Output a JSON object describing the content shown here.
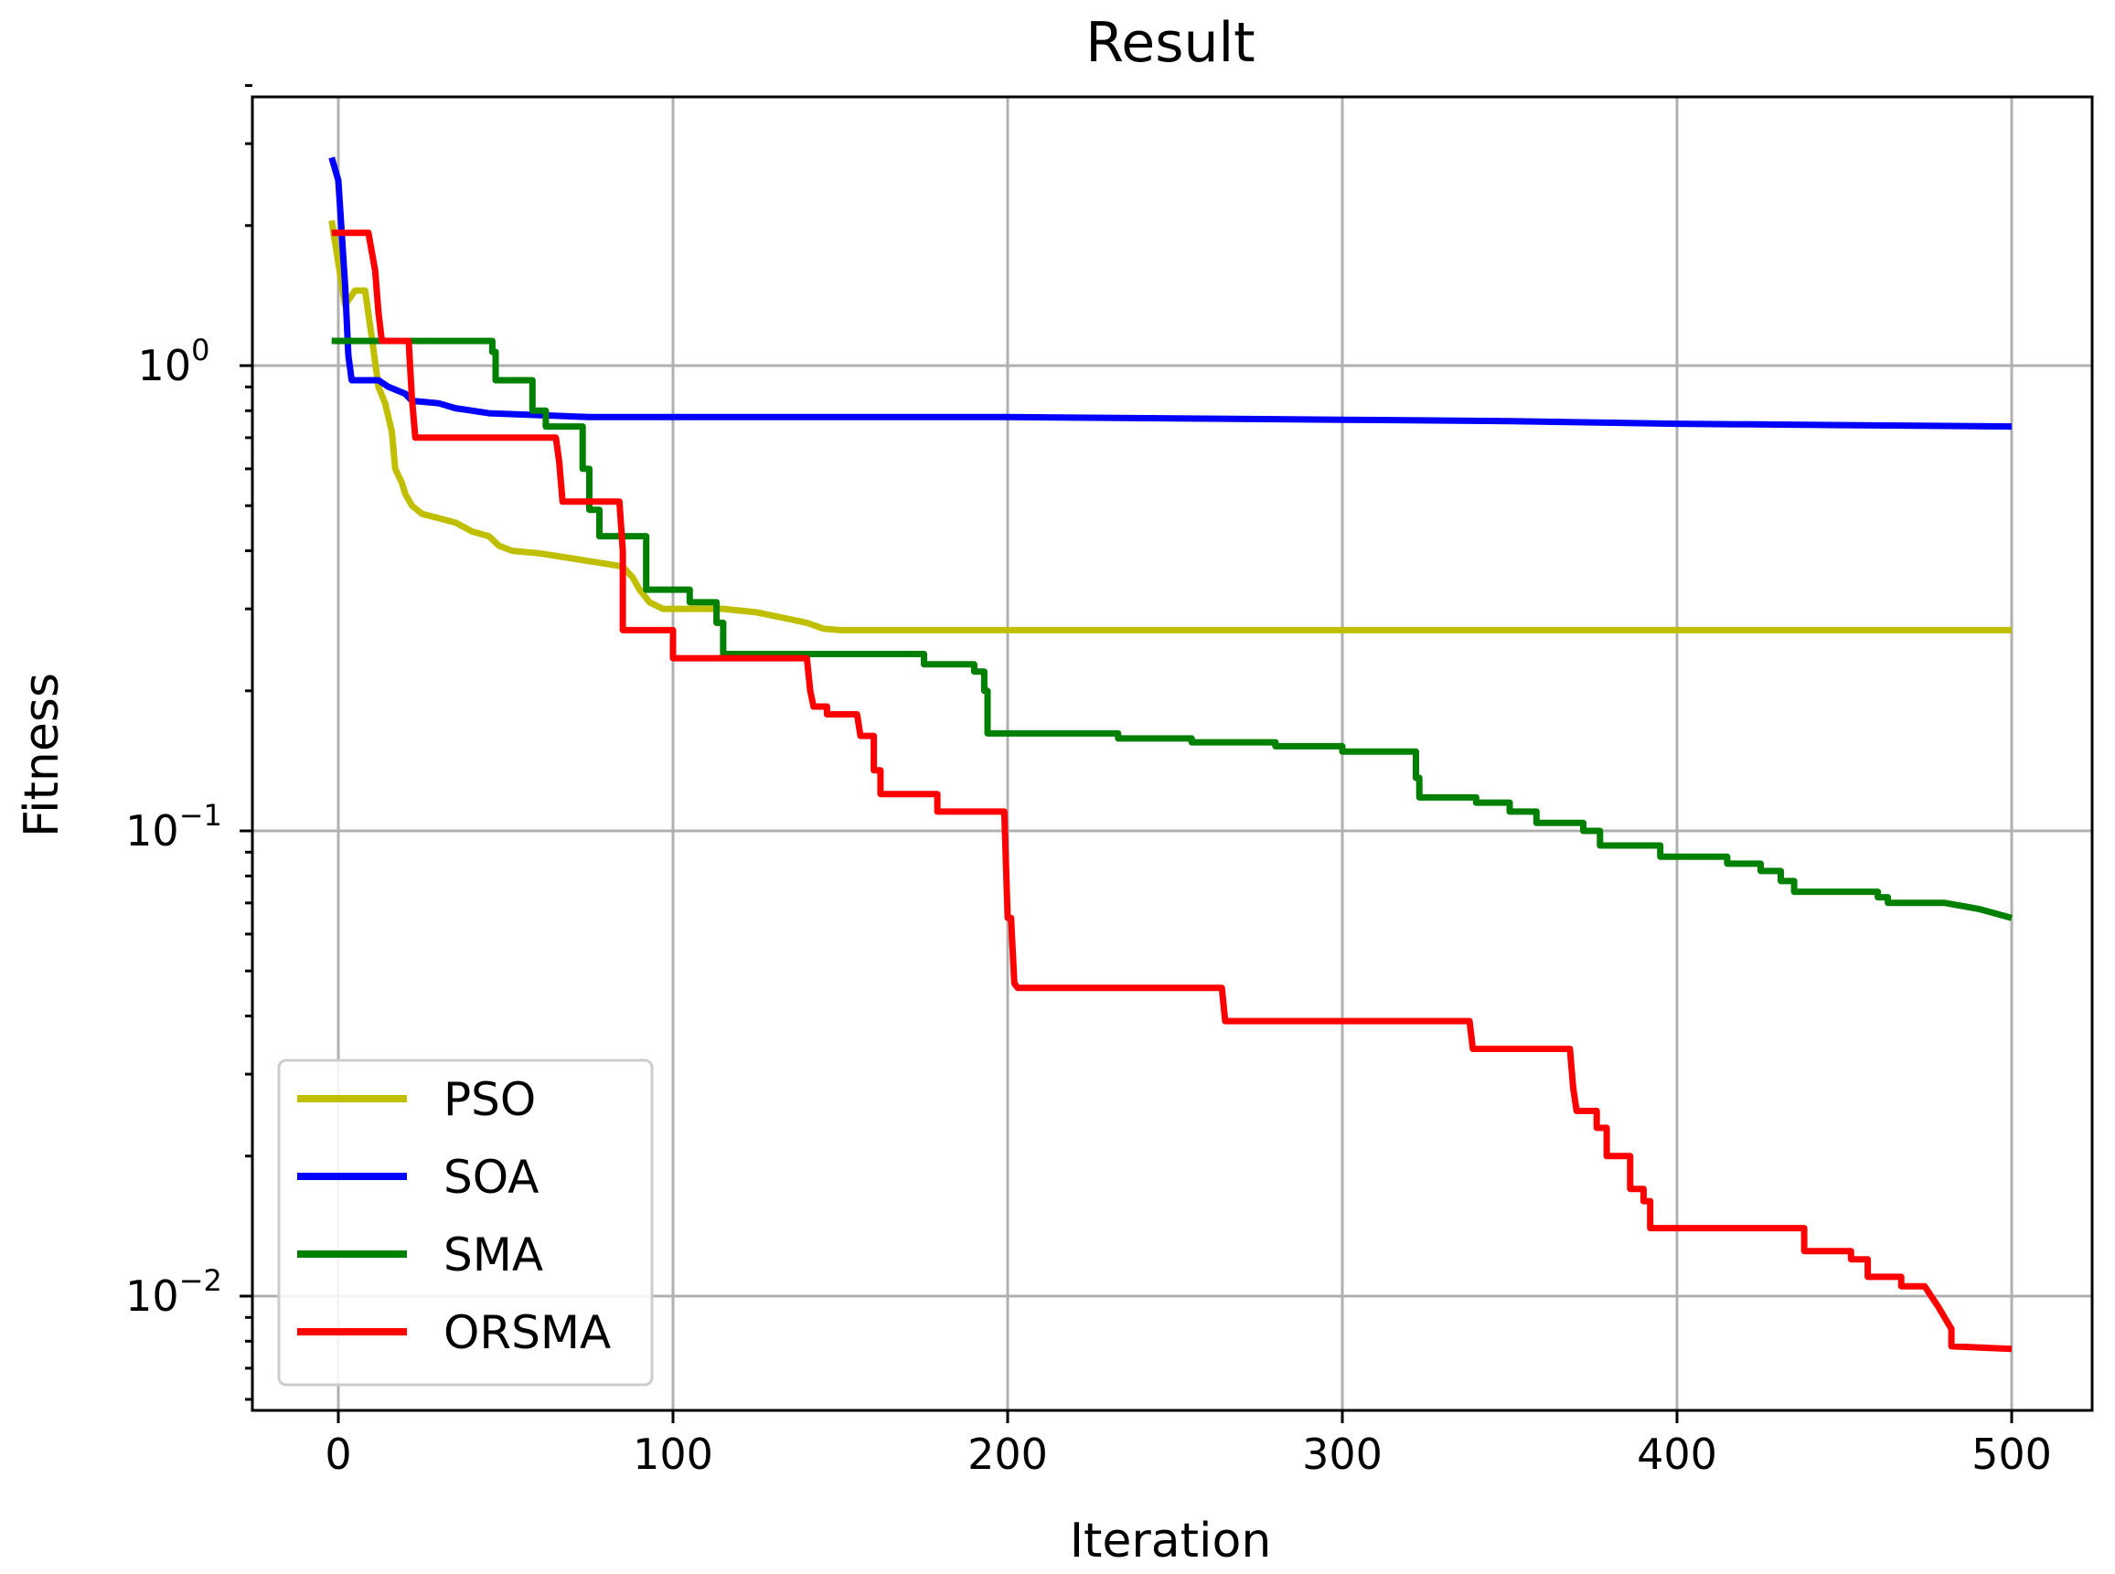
{
  "chart_data": {
    "type": "line",
    "title": "Result",
    "xlabel": "Iteration",
    "ylabel": "Fitness",
    "xlim": [
      -25,
      525
    ],
    "ylim": [
      0.0057,
      4.2
    ],
    "yscale": "log",
    "grid": true,
    "legend_position": "lower-left",
    "x_ticks": [
      0,
      100,
      200,
      300,
      400,
      500
    ],
    "y_ticks": [
      {
        "value": 1,
        "base": "10",
        "exp": "0"
      },
      {
        "value": 0.1,
        "base": "10",
        "exp": "−1"
      },
      {
        "value": 0.01,
        "base": "10",
        "exp": "−2"
      }
    ],
    "series": [
      {
        "name": "PSO",
        "color": "#bfbf00",
        "points": [
          [
            -2,
            2.05
          ],
          [
            2,
            1.35
          ],
          [
            5,
            1.45
          ],
          [
            8,
            1.45
          ],
          [
            10,
            1.15
          ],
          [
            12,
            0.9
          ],
          [
            14,
            0.83
          ],
          [
            16,
            0.72
          ],
          [
            17,
            0.6
          ],
          [
            19,
            0.56
          ],
          [
            20,
            0.53
          ],
          [
            22,
            0.5
          ],
          [
            25,
            0.48
          ],
          [
            30,
            0.47
          ],
          [
            35,
            0.46
          ],
          [
            40,
            0.44
          ],
          [
            45,
            0.43
          ],
          [
            48,
            0.41
          ],
          [
            52,
            0.4
          ],
          [
            60,
            0.395
          ],
          [
            70,
            0.385
          ],
          [
            80,
            0.375
          ],
          [
            85,
            0.37
          ],
          [
            88,
            0.35
          ],
          [
            90,
            0.33
          ],
          [
            93,
            0.31
          ],
          [
            97,
            0.3
          ],
          [
            105,
            0.3
          ],
          [
            115,
            0.3
          ],
          [
            125,
            0.295
          ],
          [
            135,
            0.285
          ],
          [
            140,
            0.28
          ],
          [
            145,
            0.272
          ],
          [
            150,
            0.27
          ],
          [
            200,
            0.27
          ],
          [
            300,
            0.27
          ],
          [
            400,
            0.27
          ],
          [
            500,
            0.27
          ]
        ]
      },
      {
        "name": "SOA",
        "color": "#0000ff",
        "points": [
          [
            -2,
            2.8
          ],
          [
            0,
            2.5
          ],
          [
            2,
            1.5
          ],
          [
            3,
            1.05
          ],
          [
            4,
            0.93
          ],
          [
            12,
            0.93
          ],
          [
            15,
            0.9
          ],
          [
            20,
            0.87
          ],
          [
            22,
            0.84
          ],
          [
            30,
            0.83
          ],
          [
            35,
            0.81
          ],
          [
            40,
            0.8
          ],
          [
            45,
            0.79
          ],
          [
            55,
            0.785
          ],
          [
            65,
            0.78
          ],
          [
            75,
            0.775
          ],
          [
            100,
            0.775
          ],
          [
            150,
            0.775
          ],
          [
            200,
            0.775
          ],
          [
            250,
            0.77
          ],
          [
            300,
            0.765
          ],
          [
            350,
            0.76
          ],
          [
            400,
            0.75
          ],
          [
            450,
            0.745
          ],
          [
            500,
            0.74
          ]
        ]
      },
      {
        "name": "SMA",
        "color": "#008000",
        "points": [
          [
            -2,
            1.13
          ],
          [
            42,
            1.13
          ],
          [
            46,
            1.13
          ],
          [
            46,
            1.07
          ],
          [
            47,
            1.07
          ],
          [
            47,
            0.93
          ],
          [
            58,
            0.93
          ],
          [
            58,
            0.8
          ],
          [
            62,
            0.8
          ],
          [
            62,
            0.74
          ],
          [
            73,
            0.74
          ],
          [
            73,
            0.6
          ],
          [
            75,
            0.6
          ],
          [
            75,
            0.49
          ],
          [
            78,
            0.49
          ],
          [
            78,
            0.43
          ],
          [
            92,
            0.43
          ],
          [
            92,
            0.33
          ],
          [
            105,
            0.33
          ],
          [
            105,
            0.31
          ],
          [
            113,
            0.31
          ],
          [
            113,
            0.28
          ],
          [
            115,
            0.28
          ],
          [
            115,
            0.24
          ],
          [
            175,
            0.24
          ],
          [
            175,
            0.228
          ],
          [
            190,
            0.228
          ],
          [
            190,
            0.22
          ],
          [
            193,
            0.22
          ],
          [
            193,
            0.2
          ],
          [
            194,
            0.2
          ],
          [
            194,
            0.162
          ],
          [
            233,
            0.162
          ],
          [
            233,
            0.158
          ],
          [
            255,
            0.158
          ],
          [
            255,
            0.155
          ],
          [
            280,
            0.155
          ],
          [
            280,
            0.152
          ],
          [
            300,
            0.152
          ],
          [
            300,
            0.148
          ],
          [
            322,
            0.148
          ],
          [
            322,
            0.13
          ],
          [
            323,
            0.13
          ],
          [
            323,
            0.118
          ],
          [
            340,
            0.118
          ],
          [
            340,
            0.115
          ],
          [
            350,
            0.115
          ],
          [
            350,
            0.11
          ],
          [
            358,
            0.11
          ],
          [
            358,
            0.104
          ],
          [
            372,
            0.104
          ],
          [
            372,
            0.1
          ],
          [
            377,
            0.1
          ],
          [
            377,
            0.093
          ],
          [
            395,
            0.093
          ],
          [
            395,
            0.088
          ],
          [
            415,
            0.088
          ],
          [
            415,
            0.085
          ],
          [
            425,
            0.085
          ],
          [
            425,
            0.082
          ],
          [
            431,
            0.082
          ],
          [
            431,
            0.078
          ],
          [
            435,
            0.078
          ],
          [
            435,
            0.074
          ],
          [
            460,
            0.074
          ],
          [
            460,
            0.072
          ],
          [
            463,
            0.072
          ],
          [
            463,
            0.07
          ],
          [
            480,
            0.07
          ],
          [
            490,
            0.068
          ],
          [
            500,
            0.065
          ]
        ]
      },
      {
        "name": "ORSMA",
        "color": "#ff0000",
        "points": [
          [
            -2,
            1.93
          ],
          [
            9,
            1.93
          ],
          [
            11,
            1.6
          ],
          [
            12,
            1.3
          ],
          [
            13,
            1.13
          ],
          [
            21,
            1.13
          ],
          [
            22,
            0.85
          ],
          [
            23,
            0.7
          ],
          [
            65,
            0.7
          ],
          [
            66,
            0.62
          ],
          [
            67,
            0.51
          ],
          [
            84,
            0.51
          ],
          [
            85,
            0.4
          ],
          [
            85,
            0.27
          ],
          [
            100,
            0.27
          ],
          [
            100,
            0.235
          ],
          [
            140,
            0.235
          ],
          [
            141,
            0.2
          ],
          [
            142,
            0.185
          ],
          [
            146,
            0.185
          ],
          [
            146,
            0.178
          ],
          [
            155,
            0.178
          ],
          [
            156,
            0.16
          ],
          [
            160,
            0.16
          ],
          [
            160,
            0.135
          ],
          [
            162,
            0.135
          ],
          [
            162,
            0.12
          ],
          [
            179,
            0.12
          ],
          [
            179,
            0.11
          ],
          [
            199,
            0.11
          ],
          [
            200,
            0.065
          ],
          [
            201,
            0.065
          ],
          [
            202,
            0.047
          ],
          [
            203,
            0.046
          ],
          [
            264,
            0.046
          ],
          [
            265,
            0.039
          ],
          [
            338,
            0.039
          ],
          [
            339,
            0.034
          ],
          [
            368,
            0.034
          ],
          [
            369,
            0.028
          ],
          [
            370,
            0.025
          ],
          [
            376,
            0.025
          ],
          [
            376,
            0.023
          ],
          [
            379,
            0.023
          ],
          [
            379,
            0.02
          ],
          [
            386,
            0.02
          ],
          [
            386,
            0.017
          ],
          [
            390,
            0.017
          ],
          [
            390,
            0.016
          ],
          [
            392,
            0.016
          ],
          [
            392,
            0.014
          ],
          [
            438,
            0.014
          ],
          [
            438,
            0.0125
          ],
          [
            452,
            0.0125
          ],
          [
            452,
            0.012
          ],
          [
            457,
            0.012
          ],
          [
            457,
            0.011
          ],
          [
            467,
            0.011
          ],
          [
            467,
            0.0105
          ],
          [
            474,
            0.0105
          ],
          [
            478,
            0.0095
          ],
          [
            482,
            0.0085
          ],
          [
            482,
            0.0078
          ],
          [
            500,
            0.0077
          ]
        ]
      }
    ]
  }
}
